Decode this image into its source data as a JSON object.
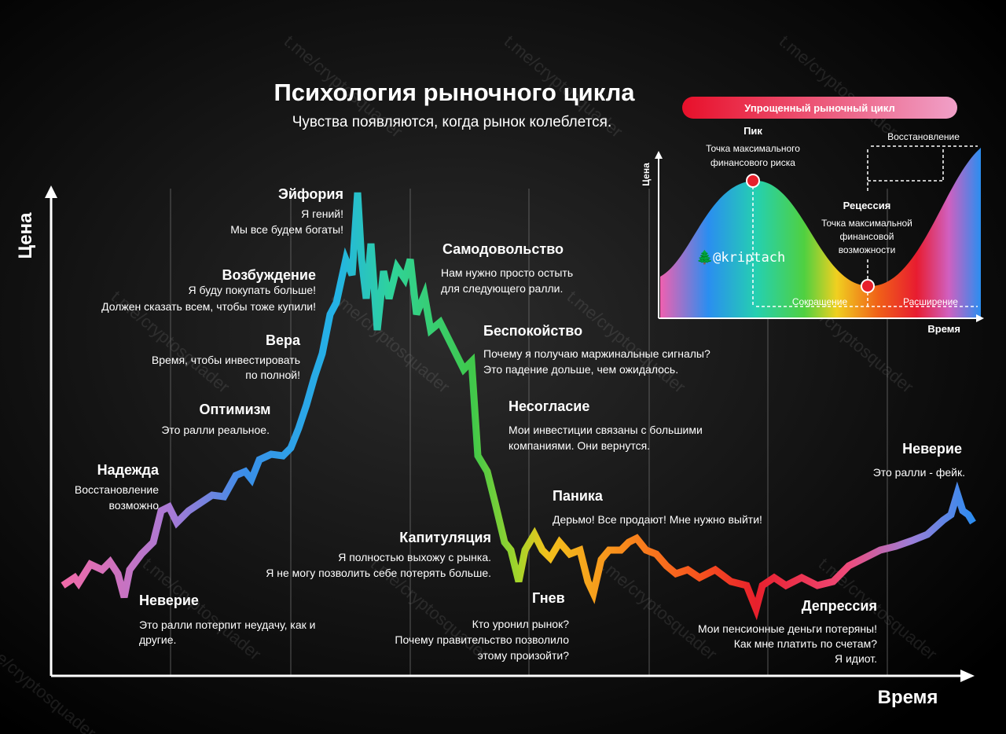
{
  "header": {
    "title": "Психология рыночного цикла",
    "subtitle": "Чувства появляются, когда рынок колеблется."
  },
  "axes": {
    "y_label": "Цена",
    "x_label": "Время"
  },
  "watermark": "t.me/cryptosquader",
  "stages": [
    {
      "title": "Надежда",
      "lines": [
        "Восстановление",
        "возможно"
      ]
    },
    {
      "title": "Неверие",
      "lines": [
        "Это ралли потерпит неудачу, как и",
        "другие."
      ]
    },
    {
      "title": "Оптимизм",
      "lines": [
        "Это ралли реальное."
      ]
    },
    {
      "title": "Вера",
      "lines": [
        "Время, чтобы инвестировать",
        "по полной!"
      ]
    },
    {
      "title": "Возбуждение",
      "lines": [
        "Я буду покупать больше!",
        "Должен сказать всем, чтобы тоже купили!"
      ]
    },
    {
      "title": "Эйфория",
      "lines": [
        "Я гений!",
        "Мы все будем богаты!"
      ]
    },
    {
      "title": "Самодовольство",
      "lines": [
        "Нам нужно просто остыть",
        "для следующего ралли."
      ]
    },
    {
      "title": "Беспокойство",
      "lines": [
        "Почему я получаю маржинальные сигналы?",
        "Это падение дольше, чем ожидалось."
      ]
    },
    {
      "title": "Несогласие",
      "lines": [
        "Мои инвестиции связаны с большими",
        "компаниями. Они вернутся."
      ]
    },
    {
      "title": "Паника",
      "lines": [
        "Дерьмо! Все продают! Мне нужно выйти!"
      ]
    },
    {
      "title": "Капитуляция",
      "lines": [
        "Я полностью выхожу с рынка.",
        "Я не могу позволить себе потерять больше."
      ]
    },
    {
      "title": "Гнев",
      "lines": [
        "Кто уронил рынок?",
        "Почему правительство позволило",
        "этому произойти?"
      ]
    },
    {
      "title": "Депрессия",
      "lines": [
        "Мои пенсионные деньги потеряны!",
        "Как мне платить по счетам?",
        "Я идиот."
      ]
    },
    {
      "title": "Неверие",
      "lines": [
        "Это ралли - фейк."
      ]
    }
  ],
  "inset": {
    "title": "Упрощенный рыночный цикл",
    "peak": {
      "title": "Пик",
      "lines": [
        "Точка максимального",
        "финансового риска"
      ]
    },
    "recession": {
      "title": "Рецессия",
      "lines": [
        "Точка максимальной",
        "финансовой",
        "возможности"
      ]
    },
    "recovery": "Восстановление",
    "contraction": "Сокращение",
    "expansion": "Расширение",
    "y_label": "Цена",
    "x_label": "Время",
    "credit": "🌲@kriptach"
  }
}
